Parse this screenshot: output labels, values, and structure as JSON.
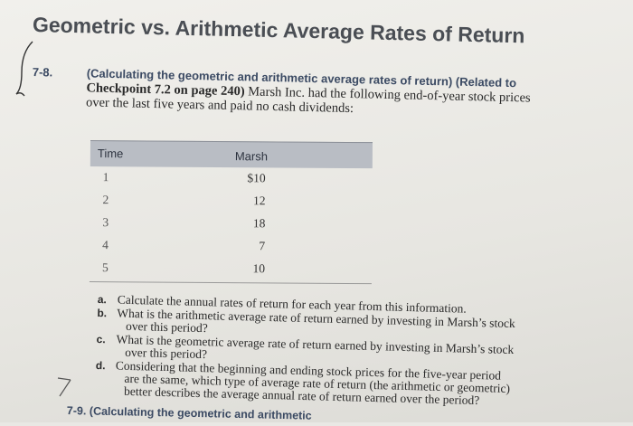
{
  "header": {
    "title": "Geometric vs. Arithmetic Average Rates of Return"
  },
  "problem": {
    "number": "7-8.",
    "topic": "(Calculating the geometric and arithmetic average rates of return) (Related to",
    "line2_bold": "Checkpoint 7.2 on page 240)",
    "line2_rest": " Marsh Inc. had the following end-of-year stock prices",
    "line3": "over the last five years and paid no cash dividends:"
  },
  "table": {
    "col_time": "Time",
    "col_marsh": "Marsh",
    "rows": [
      {
        "time": "1",
        "value": "$10"
      },
      {
        "time": "2",
        "value": "12"
      },
      {
        "time": "3",
        "value": "18"
      },
      {
        "time": "4",
        "value": "7"
      },
      {
        "time": "5",
        "value": "10"
      }
    ]
  },
  "questions": {
    "a": {
      "letter": "a.",
      "lines": [
        "Calculate the annual rates of return for each year from this information."
      ]
    },
    "b": {
      "letter": "b.",
      "lines": [
        "What is the arithmetic average rate of return earned by investing in Marsh’s stock",
        "over this period?"
      ]
    },
    "c": {
      "letter": "c.",
      "lines": [
        "What is the geometric average rate of return earned by investing in Marsh’s stock",
        "over this period?"
      ]
    },
    "d": {
      "letter": "d.",
      "lines": [
        "Considering that the beginning and ending stock prices for the five-year period",
        "are the same, which type of average rate of return (the arithmetic or geometric)",
        "better describes the average annual rate of return earned over the period?"
      ]
    }
  },
  "next_problem": {
    "text": "7-9.  (Calculating the geometric and arithmetic"
  }
}
